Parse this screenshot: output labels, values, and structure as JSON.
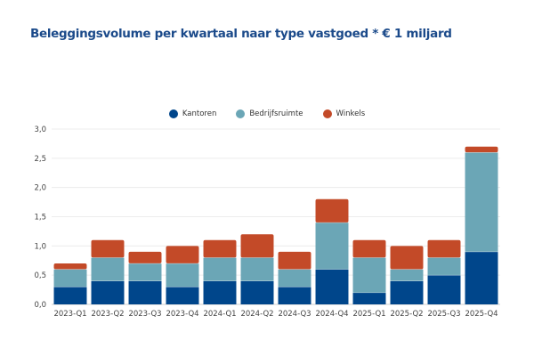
{
  "chart_data": {
    "type": "bar",
    "stacked": true,
    "title": "Beleggingsvolume per kwartaal naar type vastgoed * € 1 miljard",
    "xlabel": "",
    "ylabel": "",
    "ylim": [
      0,
      3.0
    ],
    "yticks": [
      "0,0",
      "0,5",
      "1,0",
      "1,5",
      "2,0",
      "2,5",
      "3,0"
    ],
    "ytick_values": [
      0,
      0.5,
      1.0,
      1.5,
      2.0,
      2.5,
      3.0
    ],
    "grid": true,
    "legend_position": "top-center",
    "categories": [
      "2023-Q1",
      "2023-Q2",
      "2023-Q3",
      "2023-Q4",
      "2024-Q1",
      "2024-Q2",
      "2024-Q3",
      "2024-Q4",
      "2025-Q1",
      "2025-Q2",
      "2025-Q3",
      "2025-Q4"
    ],
    "series": [
      {
        "name": "Kantoren",
        "color": "#00468b",
        "values": [
          0.3,
          0.4,
          0.4,
          0.3,
          0.4,
          0.4,
          0.3,
          0.6,
          0.2,
          0.4,
          0.5,
          0.9
        ]
      },
      {
        "name": "Bedrijfsruimte",
        "color": "#6ba6b6",
        "values": [
          0.3,
          0.4,
          0.3,
          0.4,
          0.4,
          0.4,
          0.3,
          0.8,
          0.6,
          0.2,
          0.3,
          1.7
        ]
      },
      {
        "name": "Winkels",
        "color": "#c34a28",
        "values": [
          0.1,
          0.3,
          0.2,
          0.3,
          0.3,
          0.4,
          0.3,
          0.4,
          0.3,
          0.4,
          0.3,
          0.1
        ]
      }
    ]
  }
}
